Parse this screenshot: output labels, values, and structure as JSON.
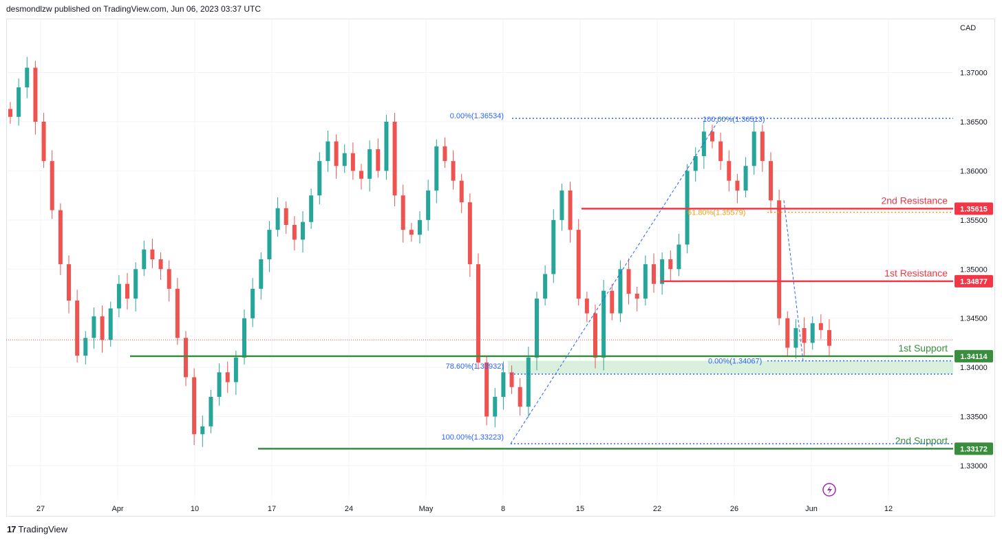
{
  "header": {
    "published": "desmondlzw published on TradingView.com, Jun 06, 2023 03:37 UTC"
  },
  "footer": {
    "brand": "TradingView",
    "logo_glyph": "17"
  },
  "chart_data": {
    "type": "candlestick",
    "currency": "CAD",
    "y_axis_ticks": [
      "1.37000",
      "1.36500",
      "1.36000",
      "1.35500",
      "1.35000",
      "1.34500",
      "1.34000",
      "1.33500",
      "1.33000"
    ],
    "y_range": [
      1.3265,
      1.3755
    ],
    "x_axis_labels": [
      "27",
      "Apr",
      "10",
      "17",
      "24",
      "May",
      "8",
      "15",
      "22",
      "26",
      "Jun",
      "12"
    ],
    "levels": [
      {
        "label": "2nd Resistance",
        "value": "1.35615",
        "kind": "resistance",
        "color": "#f23645"
      },
      {
        "label": "1st Resistance",
        "value": "1.34877",
        "kind": "resistance",
        "color": "#f23645"
      },
      {
        "label": "1st Support",
        "value": "1.34114",
        "kind": "support",
        "color": "#388e3c"
      },
      {
        "label": "2nd Support",
        "value": "1.33172",
        "kind": "support",
        "color": "#388e3c"
      }
    ],
    "fib_labels": [
      {
        "text": "0.00%(1.36534)",
        "color": "#2962ff"
      },
      {
        "text": "100.00%(1.36513)",
        "color": "#2962ff"
      },
      {
        "text": "61.80%(1.35579)",
        "color": "#f59e0b"
      },
      {
        "text": "78.60%(1.33932)",
        "color": "#2962ff"
      },
      {
        "text": "0.00%(1.34067)",
        "color": "#2962ff"
      },
      {
        "text": "100.00%(1.33223)",
        "color": "#2962ff"
      }
    ],
    "zone": {
      "from": 1.33932,
      "to": 1.34067,
      "color": "#d9f0dc"
    },
    "colors": {
      "up": "#26a69a",
      "down": "#ef5350",
      "grid": "#f0f3fa"
    },
    "closes": [
      1.3655,
      1.3685,
      1.3705,
      1.365,
      1.361,
      1.356,
      1.3505,
      1.3468,
      1.3412,
      1.343,
      1.3452,
      1.3428,
      1.346,
      1.3485,
      1.347,
      1.35,
      1.352,
      1.351,
      1.35,
      1.348,
      1.343,
      1.339,
      1.3332,
      1.334,
      1.337,
      1.3395,
      1.3385,
      1.341,
      1.345,
      1.348,
      1.351,
      1.354,
      1.3562,
      1.3545,
      1.353,
      1.3548,
      1.3575,
      1.361,
      1.363,
      1.3605,
      1.3618,
      1.36,
      1.3592,
      1.3622,
      1.36,
      1.365,
      1.3575,
      1.354,
      1.3535,
      1.355,
      1.358,
      1.3625,
      1.361,
      1.359,
      1.3568,
      1.3505,
      1.3405,
      1.335,
      1.337,
      1.3395,
      1.338,
      1.336,
      1.341,
      1.347,
      1.3495,
      1.355,
      1.358,
      1.354,
      1.347,
      1.3455,
      1.341,
      1.3478,
      1.3455,
      1.35,
      1.3475,
      1.347,
      1.3505,
      1.3485,
      1.351,
      1.35,
      1.3525,
      1.36,
      1.3615,
      1.364,
      1.363,
      1.361,
      1.359,
      1.358,
      1.3605,
      1.364,
      1.361,
      1.357,
      1.345,
      1.342,
      1.344,
      1.3425,
      1.3445,
      1.3438,
      1.3422
    ]
  }
}
